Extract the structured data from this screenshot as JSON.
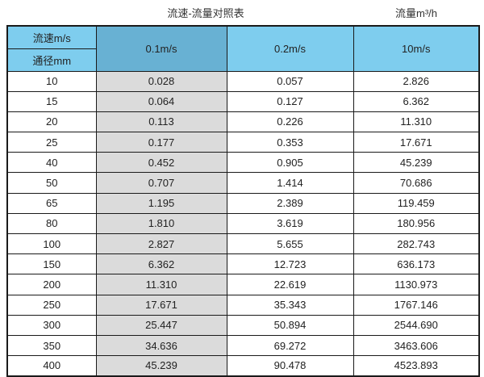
{
  "titles": {
    "main": "流速-流量对照表",
    "unit": "流量m³/h"
  },
  "table": {
    "corner_top": "流速m/s",
    "corner_bottom": "通径mm",
    "velocity_headers": [
      "0.1m/s",
      "0.2m/s",
      "10m/s"
    ]
  },
  "colors": {
    "header_blue": "#7ecdee",
    "header_blue_dark": "#68b1d3",
    "highlight_column_gray": "#dbdbdb",
    "border": "#1a1a1a",
    "text": "#222222"
  },
  "chart_data": {
    "type": "table",
    "title": "流速-流量对照表",
    "flow_unit_label": "流量m³/h",
    "columns": [
      "通径mm",
      "0.1m/s",
      "0.2m/s",
      "10m/s"
    ],
    "rows": [
      [
        "10",
        "0.028",
        "0.057",
        "2.826"
      ],
      [
        "15",
        "0.064",
        "0.127",
        "6.362"
      ],
      [
        "20",
        "0.113",
        "0.226",
        "11.310"
      ],
      [
        "25",
        "0.177",
        "0.353",
        "17.671"
      ],
      [
        "40",
        "0.452",
        "0.905",
        "45.239"
      ],
      [
        "50",
        "0.707",
        "1.414",
        "70.686"
      ],
      [
        "65",
        "1.195",
        "2.389",
        "119.459"
      ],
      [
        "80",
        "1.810",
        "3.619",
        "180.956"
      ],
      [
        "100",
        "2.827",
        "5.655",
        "282.743"
      ],
      [
        "150",
        "6.362",
        "12.723",
        "636.173"
      ],
      [
        "200",
        "11.310",
        "22.619",
        "1130.973"
      ],
      [
        "250",
        "17.671",
        "35.343",
        "1767.146"
      ],
      [
        "300",
        "25.447",
        "50.894",
        "2544.690"
      ],
      [
        "350",
        "34.636",
        "69.272",
        "3463.606"
      ],
      [
        "400",
        "45.239",
        "90.478",
        "4523.893"
      ]
    ]
  }
}
